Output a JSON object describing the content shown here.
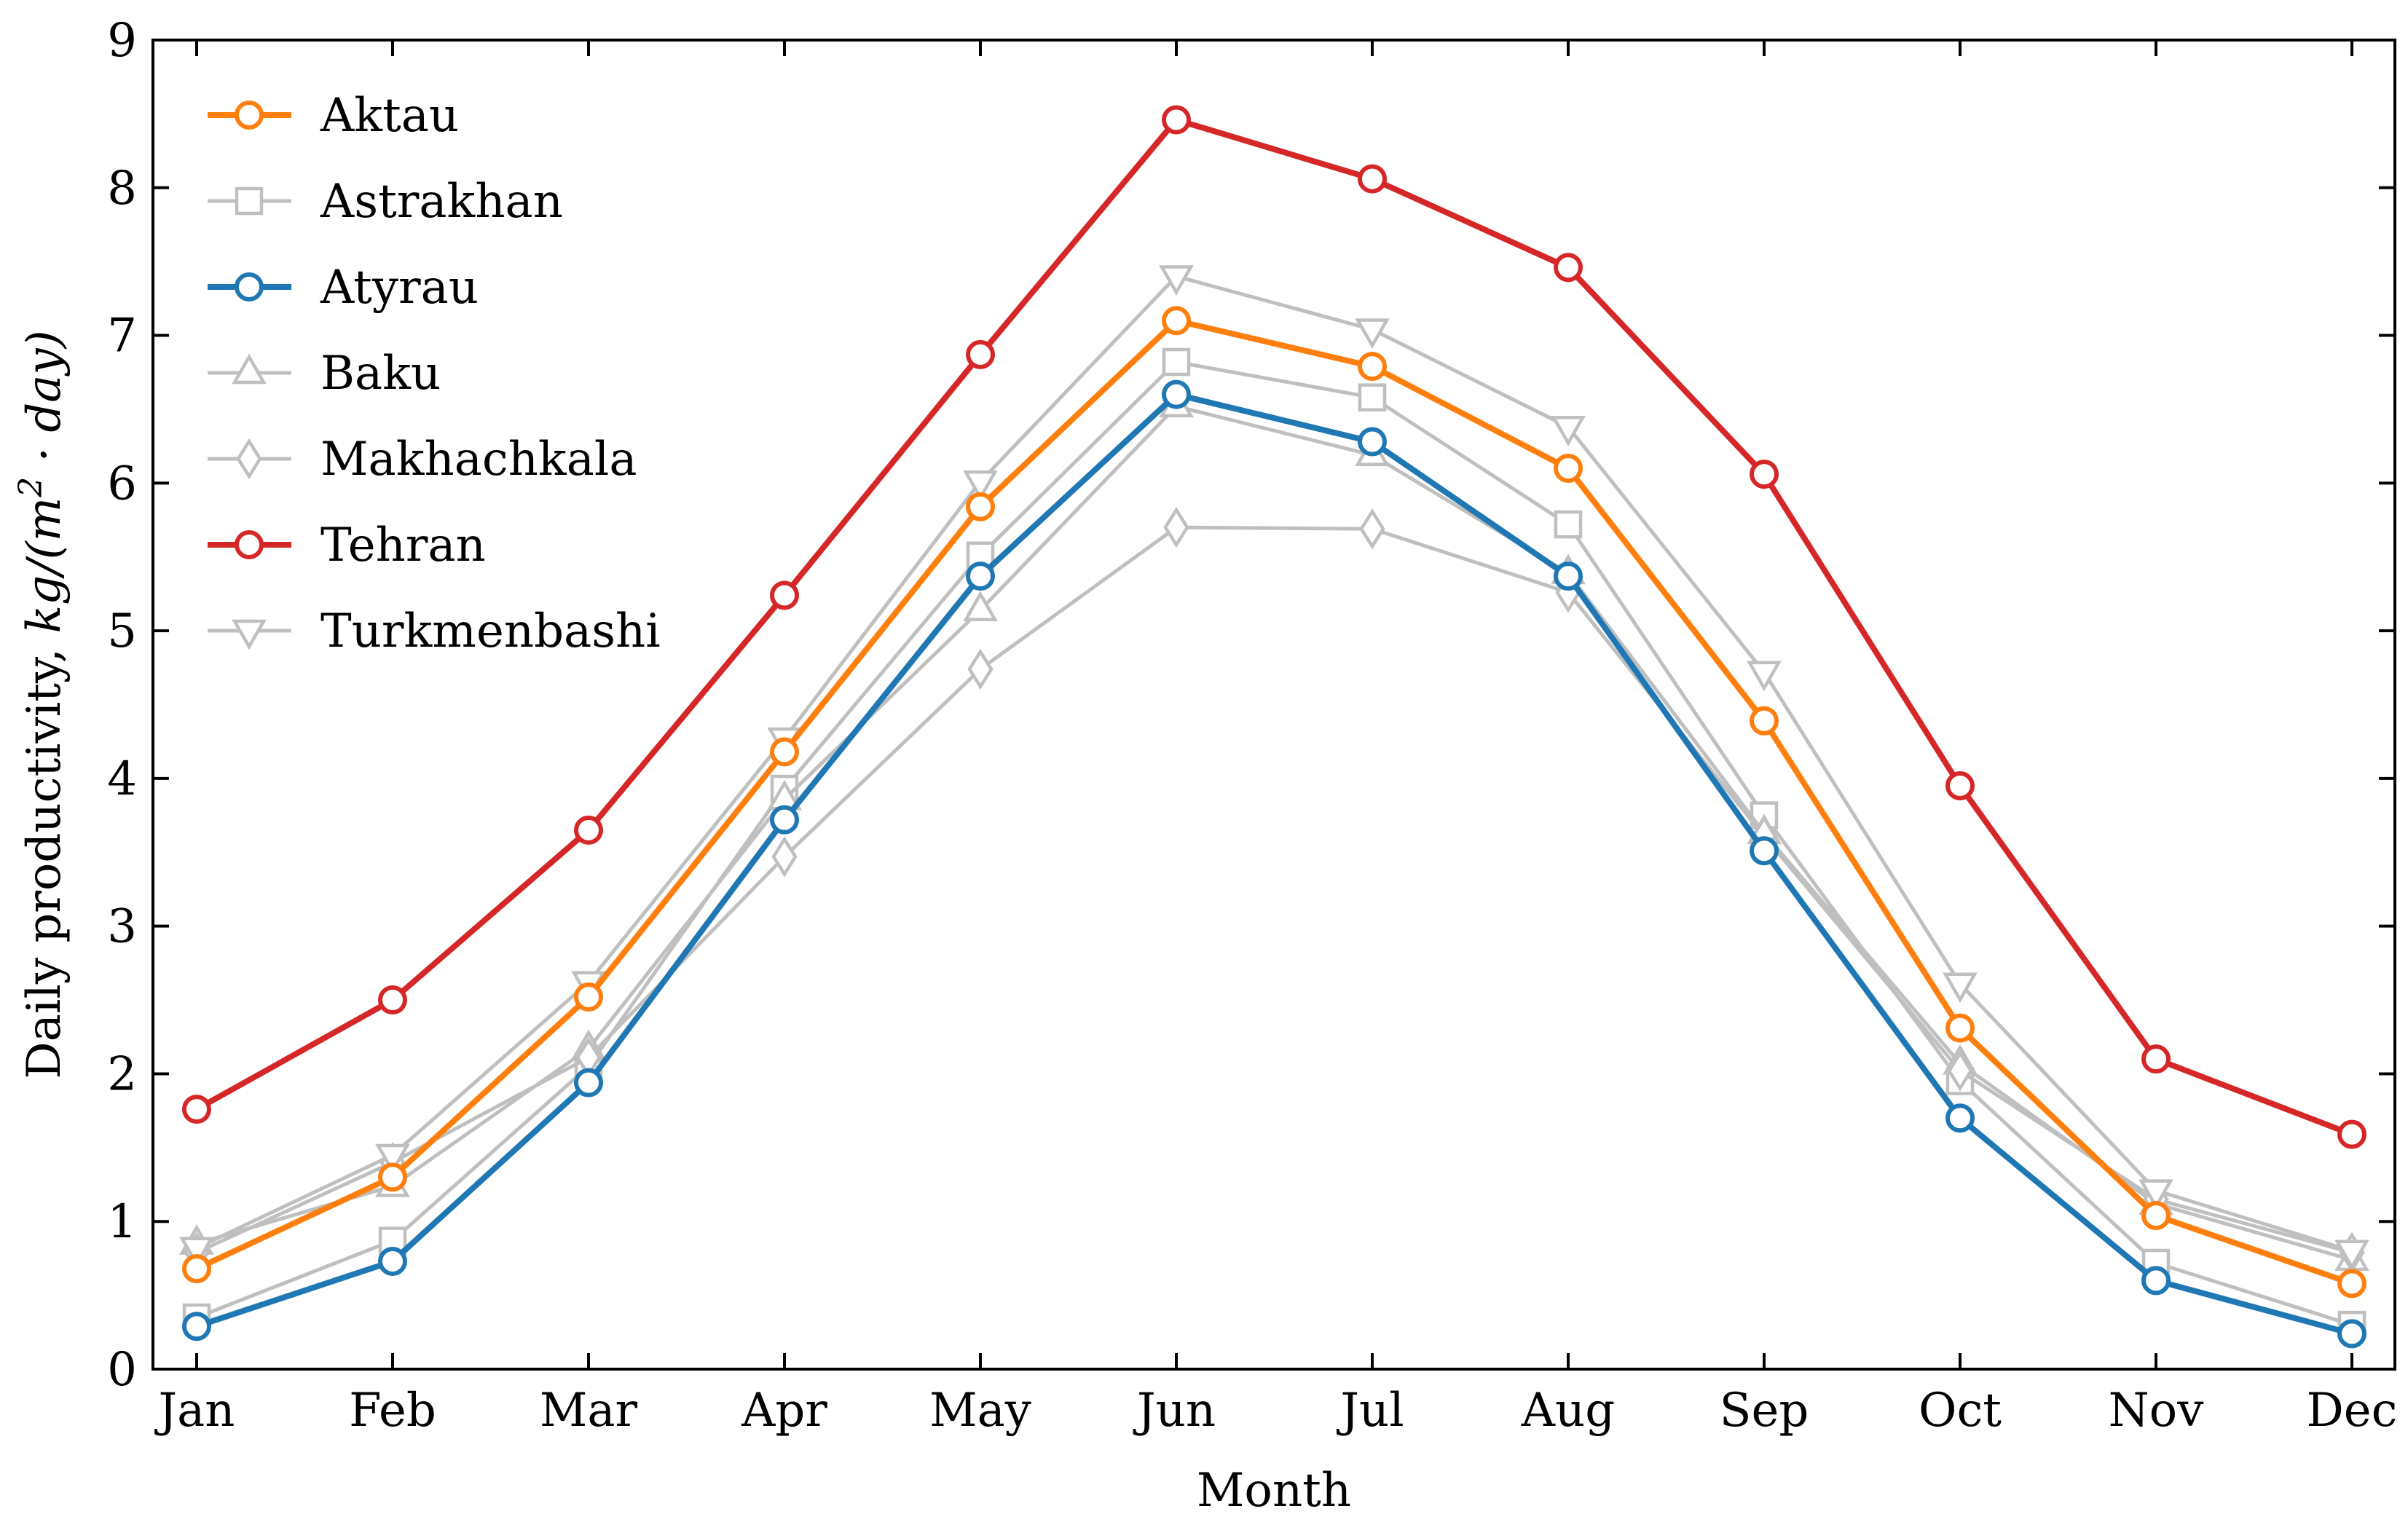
{
  "chart_data": {
    "type": "line",
    "title": "",
    "xlabel": "Month",
    "ylabel": "Daily productivity, kg/(m²·day)",
    "ylabel_parts": {
      "plain": "Daily productivity, ",
      "italic_pre": "kg/(m",
      "sup": "2",
      "italic_post": " · day)"
    },
    "ylim": [
      0,
      9
    ],
    "yticks": [
      "0",
      "1",
      "2",
      "3",
      "4",
      "5",
      "6",
      "7",
      "8",
      "9"
    ],
    "categories": [
      "Jan",
      "Feb",
      "Mar",
      "Apr",
      "May",
      "Jun",
      "Jul",
      "Aug",
      "Sep",
      "Oct",
      "Nov",
      "Dec"
    ],
    "legend_position": "top-left",
    "grid": false,
    "series": [
      {
        "name": "Aktau",
        "color": "#ff7f0e",
        "marker": "circle",
        "emphasis": true,
        "values": [
          0.68,
          1.3,
          2.52,
          4.18,
          5.84,
          7.1,
          6.79,
          6.1,
          4.39,
          2.31,
          1.04,
          0.58
        ]
      },
      {
        "name": "Astrakhan",
        "color": "#bfbfbf",
        "marker": "square",
        "emphasis": false,
        "values": [
          0.35,
          0.87,
          2.05,
          3.93,
          5.51,
          6.82,
          6.58,
          5.72,
          3.75,
          1.95,
          0.72,
          0.3
        ]
      },
      {
        "name": "Atyrau",
        "color": "#1f77b4",
        "marker": "circle",
        "emphasis": true,
        "values": [
          0.29,
          0.73,
          1.94,
          3.72,
          5.37,
          6.6,
          6.28,
          5.37,
          3.51,
          1.7,
          0.6,
          0.24
        ]
      },
      {
        "name": "Baku",
        "color": "#bfbfbf",
        "marker": "triangle-up",
        "emphasis": false,
        "values": [
          0.85,
          1.24,
          2.17,
          3.86,
          5.14,
          6.52,
          6.19,
          5.39,
          3.63,
          2.07,
          1.12,
          0.74
        ]
      },
      {
        "name": "Makhachkala",
        "color": "#bfbfbf",
        "marker": "diamond",
        "emphasis": false,
        "values": [
          0.79,
          1.4,
          2.11,
          3.47,
          4.74,
          5.7,
          5.69,
          5.26,
          3.61,
          2.02,
          1.15,
          0.79
        ]
      },
      {
        "name": "Tehran",
        "color": "#d62728",
        "marker": "circle",
        "emphasis": true,
        "values": [
          1.76,
          2.5,
          3.65,
          5.24,
          6.87,
          8.46,
          8.06,
          7.46,
          6.06,
          3.95,
          2.1,
          1.59
        ]
      },
      {
        "name": "Turkmenbashi",
        "color": "#bfbfbf",
        "marker": "triangle-down",
        "emphasis": false,
        "values": [
          0.82,
          1.45,
          2.62,
          4.27,
          6.01,
          7.4,
          7.04,
          6.38,
          4.72,
          2.61,
          1.21,
          0.8
        ]
      }
    ]
  }
}
